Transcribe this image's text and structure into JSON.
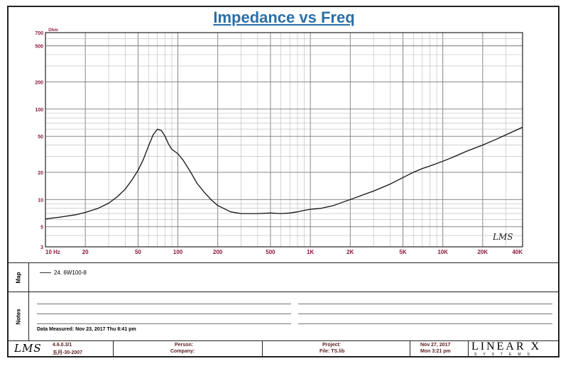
{
  "chart_data": {
    "type": "line",
    "title": "Impedance vs Freq",
    "ylabel": "Ohm",
    "xscale": "log",
    "yscale": "log",
    "xlim": [
      10,
      40000
    ],
    "ylim": [
      3,
      700
    ],
    "grid": true,
    "x_ticks": [
      10,
      20,
      50,
      100,
      200,
      500,
      1000,
      2000,
      5000,
      10000,
      20000,
      40000
    ],
    "x_tick_labels": [
      "10 Hz",
      "20",
      "50",
      "100",
      "200",
      "500",
      "1K",
      "2K",
      "5K",
      "10K",
      "20K",
      "40K"
    ],
    "y_ticks": [
      3,
      5,
      10,
      20,
      50,
      100,
      200,
      500,
      700
    ],
    "y_tick_labels": [
      "3",
      "5",
      "10",
      "20",
      "50",
      "100",
      "200",
      "500",
      "700"
    ],
    "series": [
      {
        "name": "24. 6W100-8",
        "x": [
          10,
          13,
          17,
          20,
          25,
          30,
          35,
          40,
          45,
          50,
          55,
          60,
          65,
          70,
          75,
          80,
          85,
          90,
          100,
          110,
          125,
          140,
          160,
          180,
          200,
          250,
          300,
          400,
          500,
          600,
          700,
          800,
          900,
          1000,
          1200,
          1500,
          2000,
          3000,
          4000,
          5000,
          6000,
          7000,
          8000,
          10000,
          12000,
          15000,
          20000,
          25000,
          30000,
          40000
        ],
        "values": [
          6.1,
          6.4,
          6.8,
          7.2,
          8.0,
          9.1,
          10.8,
          13.0,
          16.5,
          21.0,
          28.0,
          39.0,
          52.0,
          60.0,
          58.0,
          50.0,
          41.0,
          36.0,
          32.0,
          27.0,
          20.0,
          15.0,
          11.8,
          9.8,
          8.6,
          7.3,
          7.0,
          7.0,
          7.1,
          7.0,
          7.1,
          7.3,
          7.6,
          7.8,
          8.0,
          8.6,
          10.0,
          12.4,
          14.8,
          17.5,
          20.0,
          22.0,
          23.5,
          26.5,
          29.5,
          34.0,
          40.0,
          46.0,
          52.0,
          63.0
        ]
      }
    ],
    "annotations": [
      "LMS"
    ]
  },
  "side_labels": {
    "map": "Map",
    "notes": "Notes"
  },
  "notes": {
    "measured": "Data Measured: Nov 23, 2017  Thu  8:41 pm"
  },
  "footer": {
    "logo": "LMS",
    "version": "4.6.0.3/1",
    "build_date": "五月-30-2007",
    "person_label": "Person:",
    "company_label": "Company:",
    "project_label": "Project:",
    "file_label": "File: TS.lib",
    "date": "Nov 27, 2017",
    "time": "Mon  3:21 pm",
    "brand": "LINEAR X",
    "brand_sub": "SYSTEMS"
  }
}
